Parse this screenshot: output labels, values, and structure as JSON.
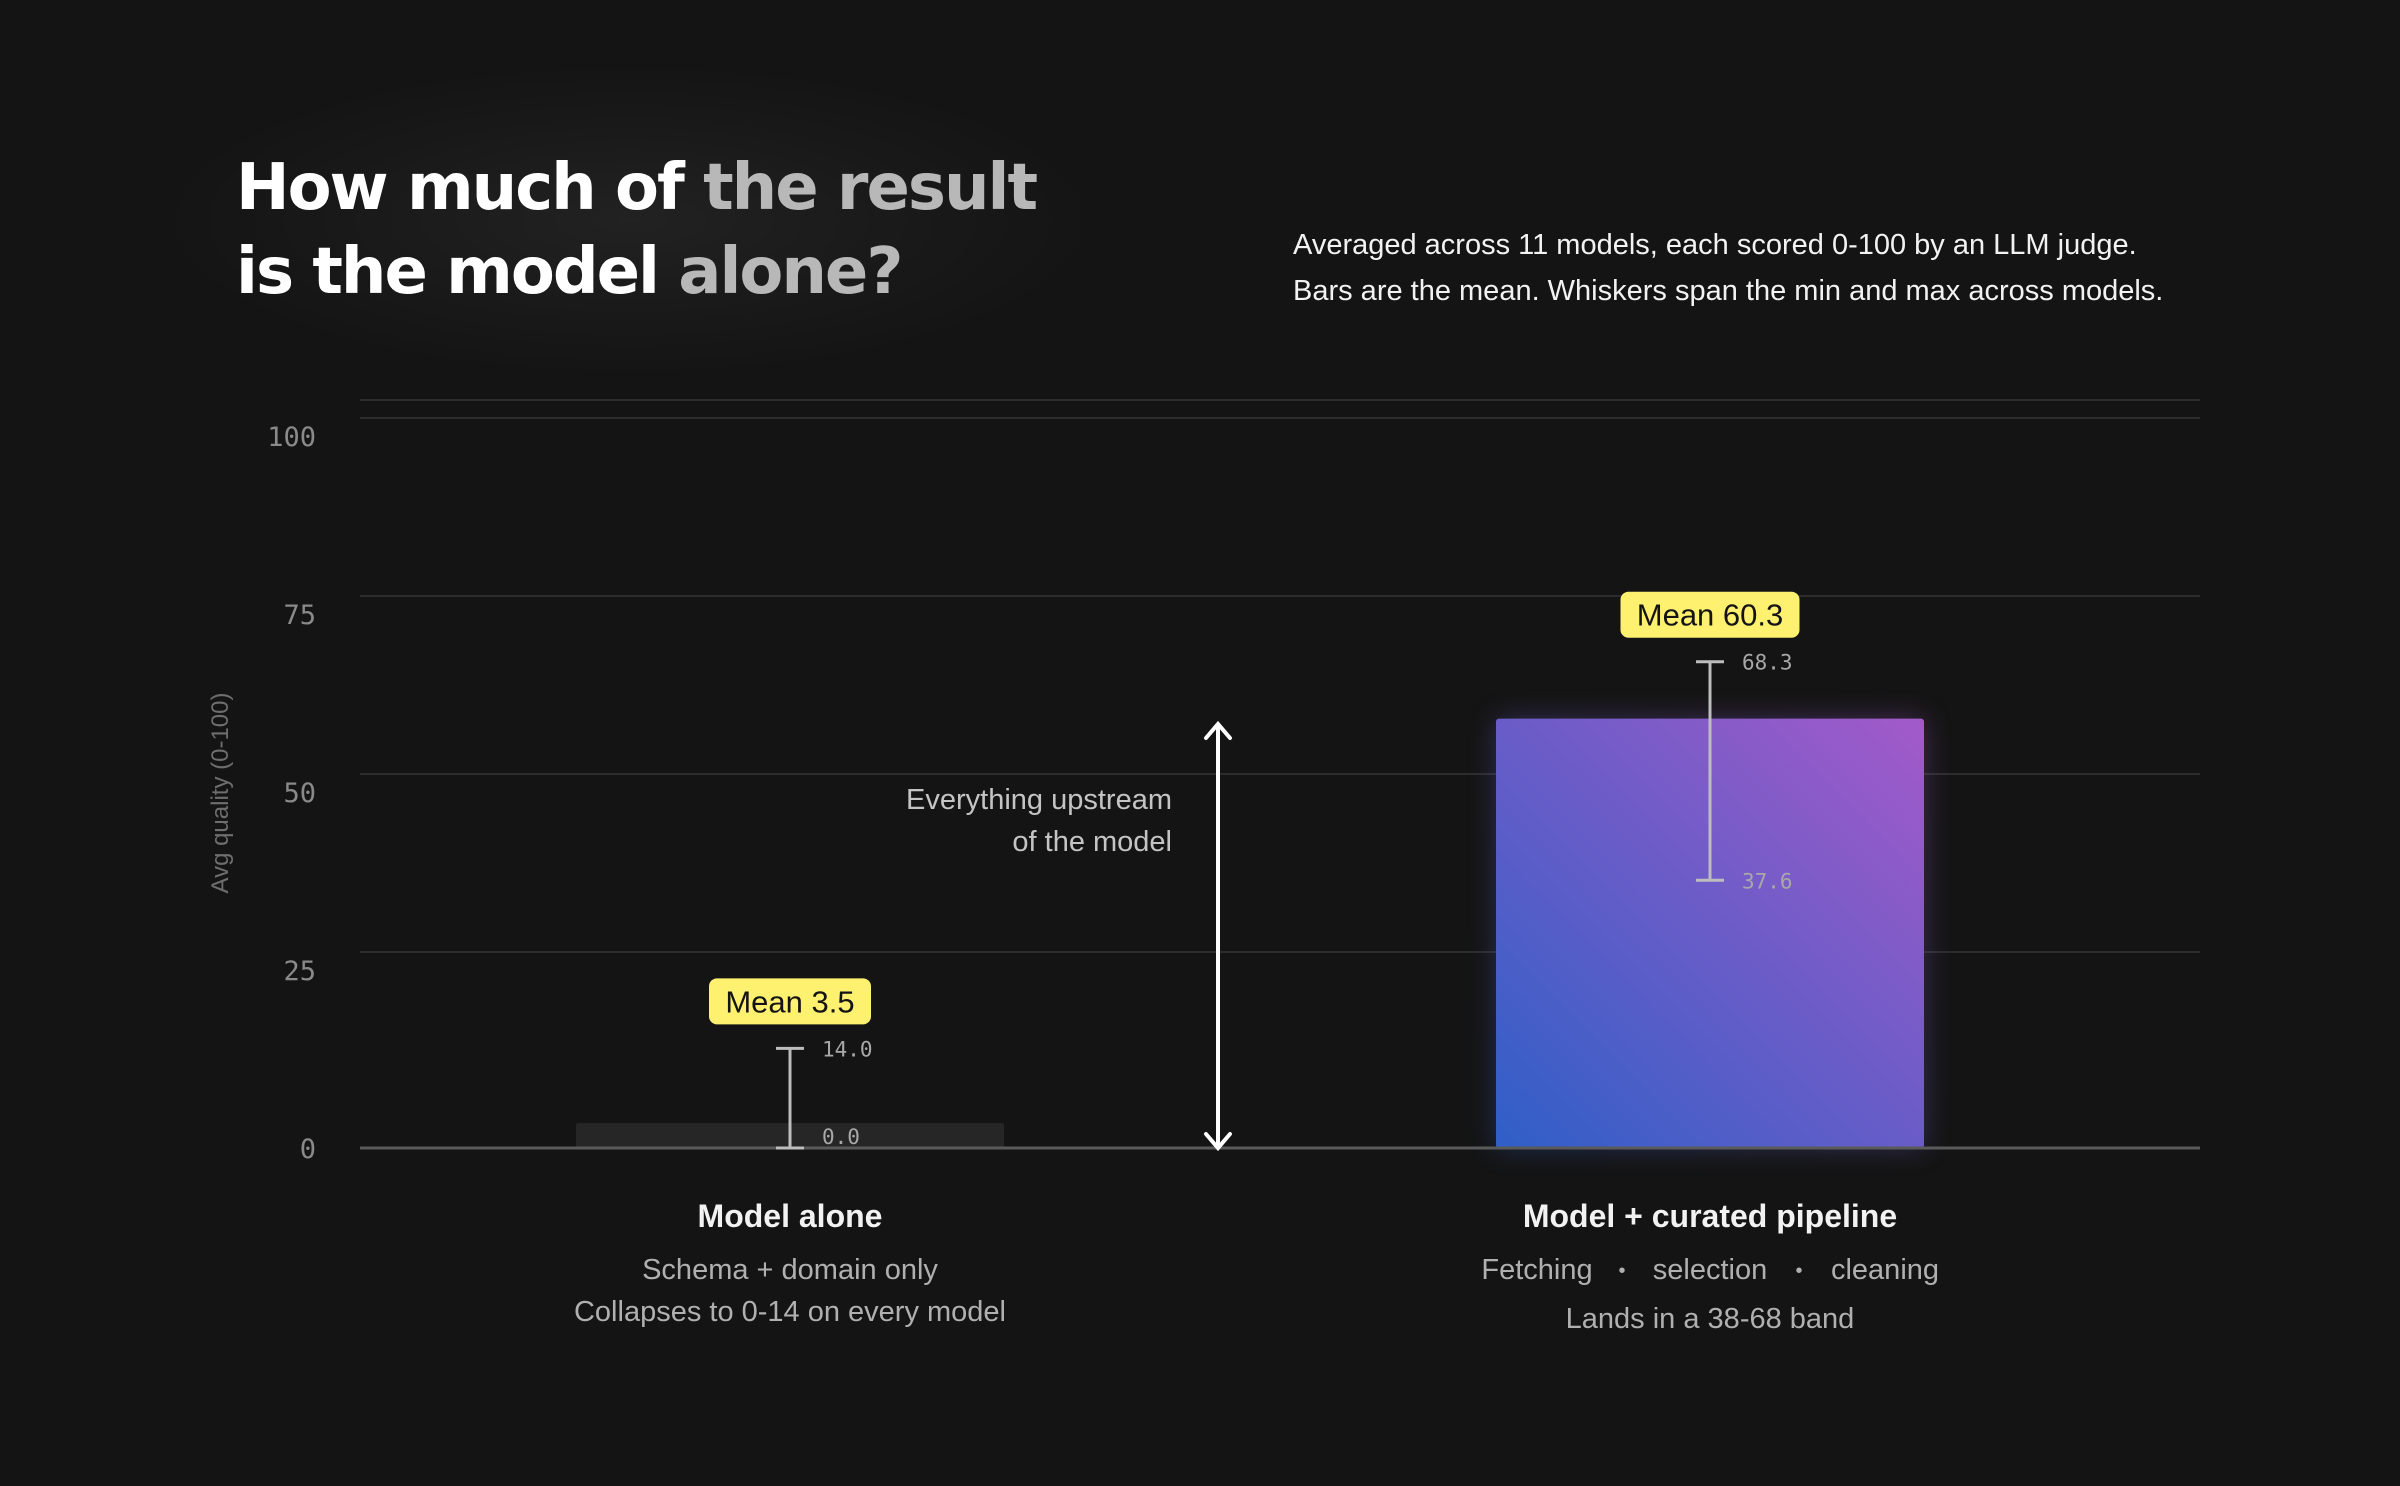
{
  "title": {
    "line1_a": "How much of",
    "line1_b": " the result",
    "line2_a": "is the model",
    "line2_b": " alone?"
  },
  "subtitle": {
    "line1": "Averaged across 11 models, each scored 0-100 by an LLM judge.",
    "line2": "Bars are the mean. Whiskers span the min and max across models."
  },
  "chart_data": {
    "type": "bar",
    "ylabel": "Avg quality (0-100)",
    "ylim": [
      0,
      100
    ],
    "yticks": [
      0,
      25,
      50,
      75,
      100
    ],
    "grid": true,
    "categories": [
      {
        "name": "Model alone",
        "caption_lines": [
          "Schema + domain only",
          "Collapses to 0-14 on every model"
        ],
        "mean": 3.5,
        "mean_label": "Mean 3.5",
        "min": 0.0,
        "min_label": "0.0",
        "max": 14.0,
        "max_label": "14.0",
        "bar_color": "#262626"
      },
      {
        "name": "Model + curated pipeline",
        "caption_items": [
          "Fetching",
          "selection",
          "cleaning"
        ],
        "caption_separator": "•",
        "caption_line2": "Lands in a 38-68 band",
        "mean": 60.3,
        "mean_label": "Mean 60.3",
        "min": 37.6,
        "min_label": "37.6",
        "max": 68.3,
        "max_label": "68.3",
        "bar_gradient": [
          "#2f5fc7",
          "#a35ac9"
        ]
      }
    ],
    "annotation": {
      "lines": [
        "Everything upstream",
        "of the model"
      ]
    }
  },
  "colors": {
    "background": "#141414",
    "badge": "#fff170",
    "badge_text": "#141414",
    "gridline": "#2c2c2c",
    "axis": "#5a5a5a",
    "tick_label": "#8a8a8a",
    "whisker": "#bdbdbd"
  }
}
